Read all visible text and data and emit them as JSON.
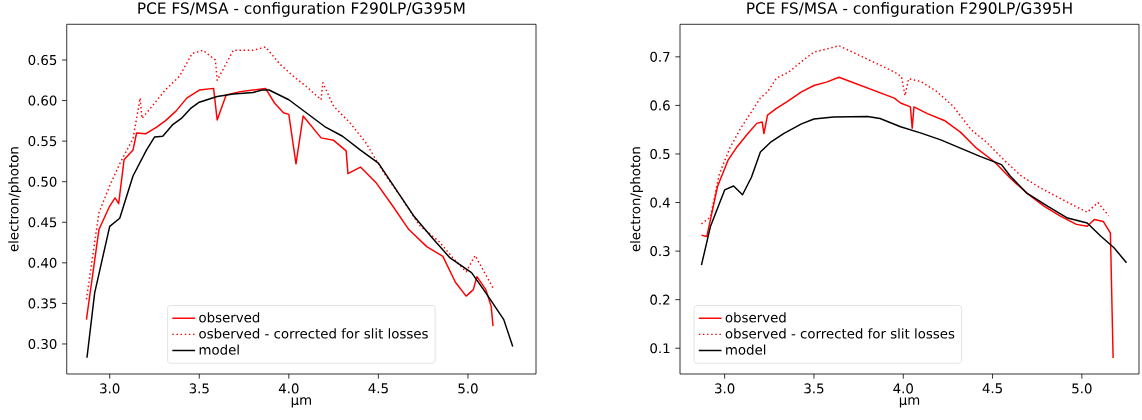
{
  "chart_data": [
    {
      "type": "line",
      "title": "PCE FS/MSA - configuration F290LP/G395M",
      "xlabel": "μm",
      "ylabel": "electron/photon",
      "xlim": [
        2.76,
        5.38
      ],
      "ylim": [
        0.263,
        0.694
      ],
      "xticks": [
        {
          "value": 3,
          "label": "3.0"
        },
        {
          "value": 3.5,
          "label": "3.5"
        },
        {
          "value": 4,
          "label": "4.0"
        },
        {
          "value": 4.5,
          "label": "4.5"
        },
        {
          "value": 5,
          "label": "5.0"
        }
      ],
      "yticks": [
        {
          "value": 0.3,
          "label": "0.30"
        },
        {
          "value": 0.35,
          "label": "0.35"
        },
        {
          "value": 0.4,
          "label": "0.40"
        },
        {
          "value": 0.45,
          "label": "0.45"
        },
        {
          "value": 0.5,
          "label": "0.50"
        },
        {
          "value": 0.55,
          "label": "0.55"
        },
        {
          "value": 0.6,
          "label": "0.60"
        },
        {
          "value": 0.65,
          "label": "0.65"
        }
      ],
      "legend": "bottom",
      "grid": false,
      "series": [
        {
          "name": "observed",
          "color": "#ff0000",
          "line_style": "solid",
          "x": [
            2.87,
            2.94,
            3.0,
            3.03,
            3.05,
            3.08,
            3.13,
            3.15,
            3.2,
            3.26,
            3.31,
            3.37,
            3.43,
            3.5,
            3.58,
            3.6,
            3.65,
            3.73,
            3.8,
            3.87,
            3.92,
            3.97,
            4.0,
            4.04,
            4.08,
            4.18,
            4.25,
            4.32,
            4.33,
            4.4,
            4.49,
            4.58,
            4.67,
            4.77,
            4.86,
            4.93,
            4.99,
            5.03,
            5.05,
            5.1,
            5.13,
            5.14
          ],
          "values": [
            0.33,
            0.441,
            0.47,
            0.48,
            0.473,
            0.527,
            0.539,
            0.56,
            0.559,
            0.567,
            0.575,
            0.587,
            0.603,
            0.613,
            0.615,
            0.576,
            0.607,
            0.611,
            0.613,
            0.615,
            0.597,
            0.585,
            0.583,
            0.522,
            0.581,
            0.554,
            0.551,
            0.538,
            0.51,
            0.518,
            0.498,
            0.47,
            0.441,
            0.42,
            0.408,
            0.376,
            0.359,
            0.367,
            0.383,
            0.367,
            0.346,
            0.322
          ]
        },
        {
          "name": "osberved - corrected for slit losses",
          "color": "#ff0000",
          "line_style": "dotted",
          "x": [
            2.87,
            2.94,
            3.0,
            3.06,
            3.13,
            3.17,
            3.18,
            3.24,
            3.31,
            3.39,
            3.46,
            3.52,
            3.59,
            3.6,
            3.69,
            3.8,
            3.87,
            3.95,
            4.03,
            4.1,
            4.18,
            4.19,
            4.25,
            4.34,
            4.43,
            4.53,
            4.62,
            4.73,
            4.84,
            4.92,
            4.99,
            5.04,
            5.1,
            5.14
          ],
          "values": [
            0.355,
            0.462,
            0.495,
            0.524,
            0.553,
            0.603,
            0.578,
            0.594,
            0.613,
            0.63,
            0.658,
            0.662,
            0.65,
            0.625,
            0.662,
            0.662,
            0.666,
            0.645,
            0.629,
            0.617,
            0.601,
            0.622,
            0.593,
            0.573,
            0.548,
            0.511,
            0.483,
            0.446,
            0.426,
            0.405,
            0.389,
            0.409,
            0.385,
            0.369
          ]
        },
        {
          "name": "model",
          "color": "#000000",
          "line_style": "solid",
          "x": [
            2.873,
            2.916,
            3.0,
            3.056,
            3.13,
            3.205,
            3.25,
            3.296,
            3.35,
            3.4,
            3.45,
            3.5,
            3.6,
            3.69,
            3.8,
            3.85,
            3.89,
            4.0,
            4.2,
            4.3,
            4.4,
            4.5,
            4.6,
            4.7,
            4.8,
            4.9,
            5.02,
            5.1,
            5.2,
            5.25
          ],
          "values": [
            0.283,
            0.363,
            0.445,
            0.455,
            0.507,
            0.539,
            0.555,
            0.556,
            0.57,
            0.578,
            0.59,
            0.598,
            0.605,
            0.608,
            0.61,
            0.613,
            0.613,
            0.601,
            0.568,
            0.556,
            0.539,
            0.523,
            0.49,
            0.457,
            0.431,
            0.406,
            0.388,
            0.363,
            0.33,
            0.297
          ]
        }
      ]
    },
    {
      "type": "line",
      "title": "PCE FS/MSA - configuration F290LP/G395H",
      "xlabel": "μm",
      "ylabel": "electron/photon",
      "xlim": [
        2.75,
        5.32
      ],
      "ylim": [
        0.047,
        0.767
      ],
      "xticks": [
        {
          "value": 3,
          "label": "3.0"
        },
        {
          "value": 3.5,
          "label": "3.5"
        },
        {
          "value": 4,
          "label": "4.0"
        },
        {
          "value": 4.5,
          "label": "4.5"
        },
        {
          "value": 5,
          "label": "5.0"
        }
      ],
      "yticks": [
        0.1,
        0.2,
        0.3,
        0.4,
        0.5,
        0.6,
        0.7
      ],
      "legend": "bottom left",
      "grid": false,
      "series": [
        {
          "name": "observed",
          "color": "#ff0000",
          "line_style": "solid",
          "x": [
            2.87,
            2.9,
            2.96,
            3.02,
            3.07,
            3.13,
            3.18,
            3.21,
            3.22,
            3.24,
            3.29,
            3.35,
            3.43,
            3.5,
            3.57,
            3.64,
            3.95,
            3.985,
            4.04,
            4.05,
            4.06,
            4.135,
            4.23,
            4.32,
            4.41,
            4.51,
            4.6,
            4.69,
            4.79,
            4.88,
            4.97,
            5.03,
            5.07,
            5.12,
            5.16,
            5.175
          ],
          "values": [
            0.333,
            0.33,
            0.433,
            0.488,
            0.515,
            0.542,
            0.563,
            0.566,
            0.542,
            0.58,
            0.594,
            0.608,
            0.628,
            0.641,
            0.648,
            0.658,
            0.615,
            0.605,
            0.597,
            0.553,
            0.597,
            0.583,
            0.569,
            0.545,
            0.512,
            0.484,
            0.45,
            0.42,
            0.392,
            0.372,
            0.355,
            0.351,
            0.365,
            0.361,
            0.337,
            0.08
          ]
        },
        {
          "name": "observed - corrected for slit losses",
          "color": "#ff0000",
          "line_style": "dotted",
          "x": [
            2.87,
            2.92,
            2.97,
            3.03,
            3.09,
            3.15,
            3.2,
            3.24,
            3.29,
            3.36,
            3.43,
            3.5,
            3.57,
            3.64,
            3.95,
            3.99,
            4.01,
            4.03,
            4.1,
            4.19,
            4.28,
            4.38,
            4.47,
            4.56,
            4.66,
            4.75,
            4.85,
            4.96,
            5.03,
            5.09,
            5.15
          ],
          "values": [
            0.356,
            0.37,
            0.459,
            0.513,
            0.553,
            0.587,
            0.615,
            0.628,
            0.656,
            0.669,
            0.69,
            0.71,
            0.716,
            0.723,
            0.669,
            0.659,
            0.62,
            0.655,
            0.649,
            0.628,
            0.598,
            0.55,
            0.523,
            0.489,
            0.455,
            0.434,
            0.414,
            0.393,
            0.38,
            0.4,
            0.373
          ]
        },
        {
          "name": "model",
          "color": "#000000",
          "line_style": "solid",
          "x": [
            2.87,
            2.92,
            3.0,
            3.05,
            3.1,
            3.15,
            3.2,
            3.26,
            3.33,
            3.43,
            3.5,
            3.61,
            3.8,
            3.87,
            3.985,
            4.1,
            4.21,
            4.32,
            4.43,
            4.55,
            4.6,
            4.69,
            4.81,
            4.92,
            5.03,
            5.105,
            5.18,
            5.25
          ],
          "values": [
            0.271,
            0.35,
            0.426,
            0.434,
            0.416,
            0.452,
            0.504,
            0.525,
            0.542,
            0.562,
            0.572,
            0.576,
            0.577,
            0.573,
            0.556,
            0.543,
            0.529,
            0.512,
            0.495,
            0.478,
            0.454,
            0.42,
            0.392,
            0.368,
            0.358,
            0.331,
            0.307,
            0.276
          ]
        }
      ]
    }
  ]
}
